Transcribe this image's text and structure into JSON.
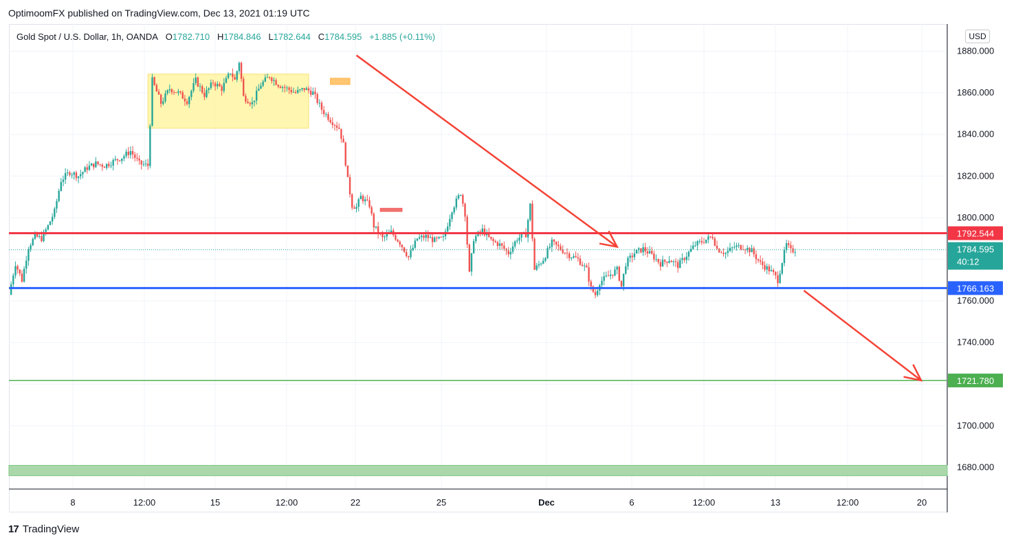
{
  "header": {
    "publisher_line": "OptimoomFX published on TradingView.com, Dec 13, 2021 01:19 UTC"
  },
  "legend": {
    "symbol": "Gold Spot / U.S. Dollar, 1h, OANDA",
    "open_label": "O",
    "open": "1782.710",
    "high_label": "H",
    "high": "1784.846",
    "low_label": "L",
    "low": "1782.644",
    "close_label": "C",
    "close": "1784.595",
    "change": "+1.885 (+0.11%)"
  },
  "currency": "USD",
  "footer": {
    "brand": "TradingView",
    "logo_glyph": "17"
  },
  "colors": {
    "up": "#26a69a",
    "down": "#ef5350",
    "resistance": "#f23645",
    "support": "#2962ff",
    "target": "#4caf50",
    "zone_fill": "#fff59d",
    "target_zone": "#a5d6a7",
    "arrow": "#f44336"
  },
  "chart_data": {
    "type": "candlestick",
    "title": "Gold Spot / U.S. Dollar, 1h, OANDA",
    "ylim": [
      1672,
      1890
    ],
    "x_ticks": [
      "8",
      "12:00",
      "15",
      "12:00",
      "22",
      "25",
      "Dec",
      "6",
      "12:00",
      "13",
      "12:00",
      "20"
    ],
    "y_ticks": [
      "1680.000",
      "1700.000",
      "1720.000",
      "1740.000",
      "1760.000",
      "1780.000",
      "1800.000",
      "1820.000",
      "1840.000",
      "1860.000",
      "1880.000"
    ],
    "last_price": {
      "value": 1784.595,
      "label": "1784.595",
      "countdown": "40:12"
    },
    "levels": [
      {
        "name": "resistance",
        "value": 1792.544,
        "label": "1792.544",
        "color": "#f23645"
      },
      {
        "name": "support",
        "value": 1766.163,
        "label": "1766.163",
        "color": "#2962ff"
      },
      {
        "name": "target",
        "value": 1721.78,
        "label": "1721.780",
        "color": "#4caf50"
      }
    ],
    "zones": [
      {
        "name": "consolidation-zone",
        "from_y": 1843,
        "to_y": 1869,
        "color": "#fff59d"
      },
      {
        "name": "target-zone",
        "from_y": 1676,
        "to_y": 1681,
        "color": "#a5d6a7"
      }
    ],
    "price_path": [
      [
        0,
        1763
      ],
      [
        1.5,
        1778
      ],
      [
        3,
        1770
      ],
      [
        4.5,
        1786
      ],
      [
        6,
        1791
      ],
      [
        7.5,
        1790
      ],
      [
        9,
        1796
      ],
      [
        10.5,
        1803
      ],
      [
        12,
        1818
      ],
      [
        14,
        1822
      ],
      [
        16,
        1820
      ],
      [
        18,
        1824
      ],
      [
        20,
        1826
      ],
      [
        22,
        1825
      ],
      [
        24,
        1827
      ],
      [
        26,
        1829
      ],
      [
        28,
        1832
      ],
      [
        30,
        1826
      ],
      [
        32,
        1825
      ],
      [
        33,
        1866
      ],
      [
        35,
        1855
      ],
      [
        37,
        1862
      ],
      [
        39,
        1860
      ],
      [
        41,
        1856
      ],
      [
        43,
        1866
      ],
      [
        45,
        1859
      ],
      [
        47,
        1865
      ],
      [
        49,
        1862
      ],
      [
        51,
        1870
      ],
      [
        52,
        1866
      ],
      [
        53,
        1875
      ],
      [
        54,
        1858
      ],
      [
        56,
        1855
      ],
      [
        58,
        1864
      ],
      [
        60,
        1868
      ],
      [
        62,
        1864
      ],
      [
        64,
        1862
      ],
      [
        66,
        1860
      ],
      [
        68,
        1862
      ],
      [
        70,
        1860
      ],
      [
        72,
        1852
      ],
      [
        74,
        1847
      ],
      [
        76,
        1843
      ],
      [
        77,
        1835
      ],
      [
        78,
        1818
      ],
      [
        79,
        1806
      ],
      [
        80,
        1805
      ],
      [
        81,
        1810
      ],
      [
        83,
        1806
      ],
      [
        84,
        1796
      ],
      [
        86,
        1790
      ],
      [
        88,
        1793
      ],
      [
        90,
        1788
      ],
      [
        92,
        1781
      ],
      [
        94,
        1790
      ],
      [
        96,
        1791
      ],
      [
        98,
        1789
      ],
      [
        100,
        1790
      ],
      [
        102,
        1804
      ],
      [
        104,
        1812
      ],
      [
        105,
        1802
      ],
      [
        106,
        1773
      ],
      [
        107,
        1790
      ],
      [
        109,
        1794
      ],
      [
        111,
        1789
      ],
      [
        113,
        1787
      ],
      [
        115,
        1783
      ],
      [
        117,
        1790
      ],
      [
        119,
        1792
      ],
      [
        120,
        1806
      ],
      [
        121,
        1775
      ],
      [
        123,
        1780
      ],
      [
        125,
        1788
      ],
      [
        127,
        1785
      ],
      [
        129,
        1782
      ],
      [
        131,
        1780
      ],
      [
        133,
        1775
      ],
      [
        134,
        1766
      ],
      [
        135,
        1763
      ],
      [
        136,
        1769
      ],
      [
        138,
        1772
      ],
      [
        140,
        1775
      ],
      [
        141,
        1767
      ],
      [
        142,
        1778
      ],
      [
        144,
        1783
      ],
      [
        146,
        1785
      ],
      [
        148,
        1782
      ],
      [
        150,
        1778
      ],
      [
        152,
        1780
      ],
      [
        154,
        1777
      ],
      [
        156,
        1782
      ],
      [
        158,
        1787
      ],
      [
        160,
        1789
      ],
      [
        162,
        1791
      ],
      [
        163,
        1785
      ],
      [
        165,
        1783
      ],
      [
        167,
        1786
      ],
      [
        169,
        1786
      ],
      [
        171,
        1784
      ],
      [
        173,
        1778
      ],
      [
        175,
        1775
      ],
      [
        176,
        1773
      ],
      [
        177,
        1770
      ],
      [
        178,
        1779
      ],
      [
        179,
        1787
      ],
      [
        180,
        1784
      ],
      [
        181,
        1784.6
      ]
    ],
    "annotations": [
      {
        "type": "arrow",
        "from": [
          80,
          1878
        ],
        "to": [
          140,
          1786
        ],
        "color": "#f44336"
      },
      {
        "type": "arrow",
        "from": [
          183,
          1765
        ],
        "to": [
          210,
          1721.78
        ],
        "color": "#f44336"
      },
      {
        "type": "box",
        "name": "resistance-marker",
        "x_range": [
          74,
          78.5
        ],
        "y_range": [
          1864,
          1867
        ],
        "color": "#ffb74d"
      },
      {
        "type": "box",
        "name": "breakdown-marker",
        "x_range": [
          85.5,
          90.5
        ],
        "y_range": [
          1803,
          1804.5
        ],
        "color": "#ef5350"
      }
    ]
  }
}
